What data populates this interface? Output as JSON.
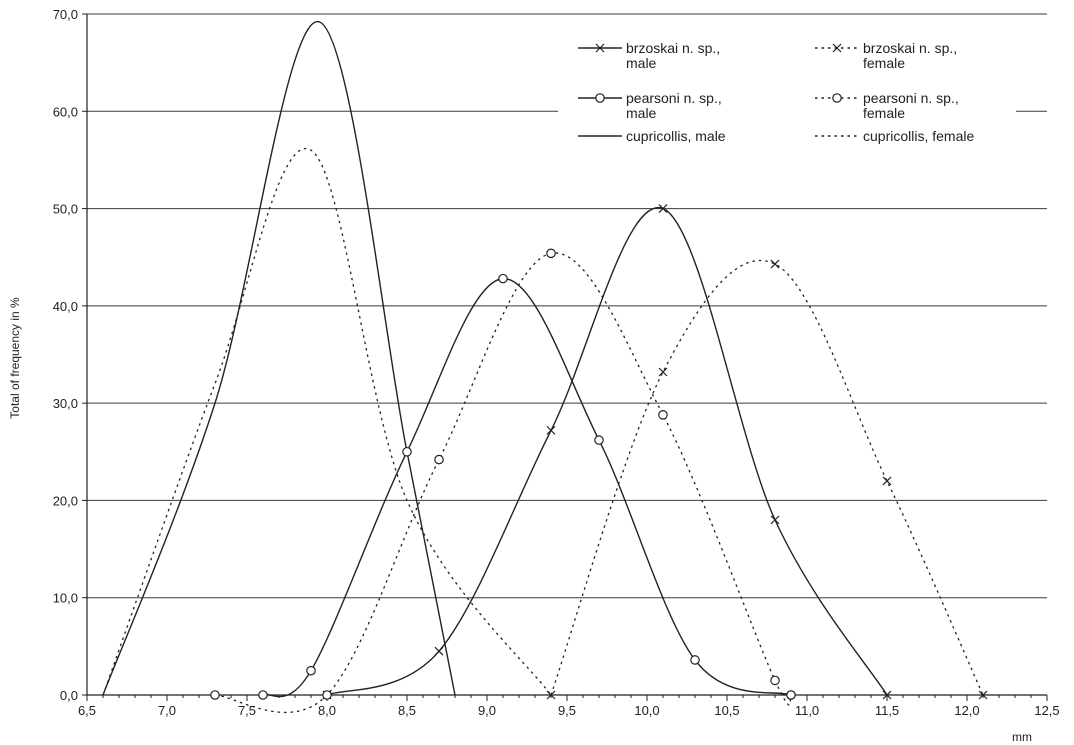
{
  "chart_data": {
    "type": "line",
    "ylabel": "Total of frequency in %",
    "xlabel": "mm",
    "xlim": [
      6.5,
      12.5
    ],
    "ylim": [
      0,
      70
    ],
    "x_ticks": [
      "6,5",
      "7,0",
      "7,5",
      "8,0",
      "8,5",
      "9,0",
      "9,5",
      "10,0",
      "10,5",
      "11,0",
      "11,5",
      "12,0",
      "12,5"
    ],
    "y_ticks": [
      "0,0",
      "10,0",
      "20,0",
      "30,0",
      "40,0",
      "50,0",
      "60,0",
      "70,0"
    ],
    "grid": "horizontal",
    "legend_position": "top-right",
    "series": [
      {
        "key": "brzoskai_male",
        "name": "brzoskai n. sp., male",
        "label_lines": [
          "brzoskai n. sp.,",
          "male"
        ],
        "style": "solid",
        "marker": "x",
        "x": [
          8.0,
          8.7,
          9.4,
          10.1,
          10.8,
          11.5
        ],
        "y": [
          0.0,
          4.5,
          27.2,
          50.0,
          18.0,
          0.0
        ]
      },
      {
        "key": "brzoskai_female",
        "name": "brzoskai n. sp., female",
        "label_lines": [
          "brzoskai n. sp.,",
          "female"
        ],
        "style": "dotted",
        "marker": "x",
        "x": [
          9.4,
          10.1,
          10.8,
          11.5,
          12.1
        ],
        "y": [
          0.0,
          33.2,
          44.3,
          22.0,
          0.0
        ]
      },
      {
        "key": "pearsoni_male",
        "name": "pearsoni n. sp., male",
        "label_lines": [
          "pearsoni n. sp.,",
          "male"
        ],
        "style": "solid",
        "marker": "o",
        "x": [
          7.6,
          7.9,
          8.5,
          9.1,
          9.7,
          10.3,
          10.9
        ],
        "y": [
          0.0,
          2.5,
          25.0,
          42.8,
          26.2,
          3.6,
          0.0
        ]
      },
      {
        "key": "pearsoni_female",
        "name": "pearsoni n. sp., female",
        "label_lines": [
          "pearsoni n. sp.,",
          "female"
        ],
        "style": "dotted",
        "marker": "o",
        "x": [
          7.3,
          8.0,
          8.7,
          9.4,
          10.1,
          10.8,
          10.9
        ],
        "y": [
          0.0,
          0.0,
          24.2,
          45.4,
          28.8,
          1.5,
          0.0
        ]
      },
      {
        "key": "cupricollis_male",
        "name": "cupricollis, male",
        "label_lines": [
          "cupricollis, male"
        ],
        "style": "solid",
        "marker": "none",
        "x": [
          6.6,
          7.3,
          7.95,
          8.5,
          8.8
        ],
        "y": [
          0.0,
          30.0,
          69.2,
          25.0,
          0.0
        ]
      },
      {
        "key": "cupricollis_female",
        "name": "cupricollis, female",
        "label_lines": [
          "cupricollis, female"
        ],
        "style": "dotted",
        "marker": "none",
        "x": [
          6.6,
          7.3,
          7.9,
          8.5,
          9.4
        ],
        "y": [
          0.0,
          32.0,
          56.0,
          20.0,
          0.0
        ]
      }
    ]
  }
}
